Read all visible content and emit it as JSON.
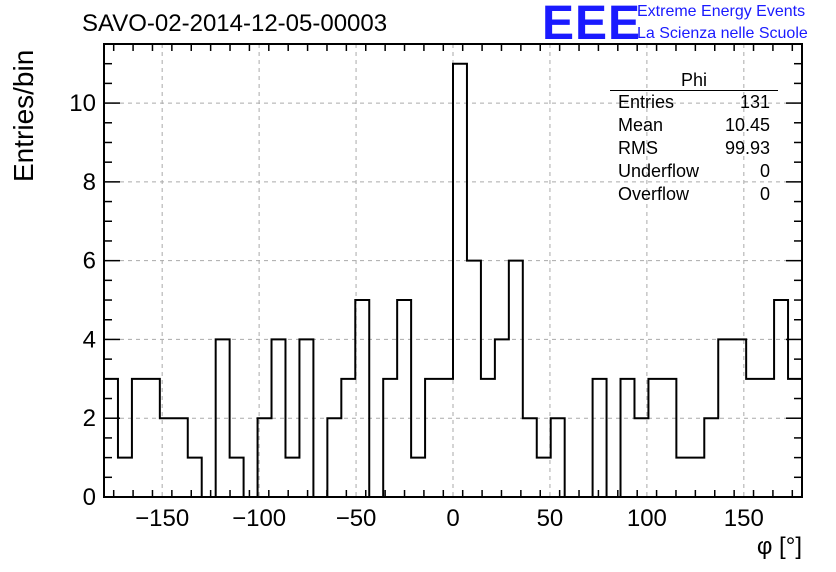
{
  "title": "SAVO-02-2014-12-05-00003",
  "logo": {
    "mark": "EEE",
    "line1": "Extreme Energy Events",
    "line2": "La Scienza nelle Scuole"
  },
  "stats": {
    "name": "Phi",
    "rows": [
      {
        "label": "Entries",
        "value": "131"
      },
      {
        "label": "Mean",
        "value": "10.45"
      },
      {
        "label": "RMS",
        "value": "99.93"
      },
      {
        "label": "Underflow",
        "value": "0"
      },
      {
        "label": "Overflow",
        "value": "0"
      }
    ]
  },
  "chart_data": {
    "type": "histogram",
    "title": "SAVO-02-2014-12-05-00003",
    "xlabel": "φ [°]",
    "ylabel": "Entries/bin",
    "xlim": [
      -180,
      180
    ],
    "ylim": [
      0,
      11.5
    ],
    "bin_width": 7.2,
    "bin_start": -180,
    "counts": [
      3,
      1,
      3,
      3,
      2,
      2,
      1,
      0,
      4,
      1,
      0,
      2,
      4,
      1,
      4,
      0,
      2,
      3,
      5,
      0,
      3,
      5,
      1,
      3,
      3,
      11,
      6,
      3,
      4,
      6,
      2,
      1,
      2,
      0,
      0,
      3,
      0,
      3,
      2,
      3,
      3,
      1,
      1,
      2,
      4,
      4,
      3,
      3,
      5,
      3
    ],
    "xticks": [
      -150,
      -100,
      -50,
      0,
      50,
      100,
      150
    ],
    "yticks": [
      0,
      2,
      4,
      6,
      8,
      10
    ],
    "grid": true
  }
}
